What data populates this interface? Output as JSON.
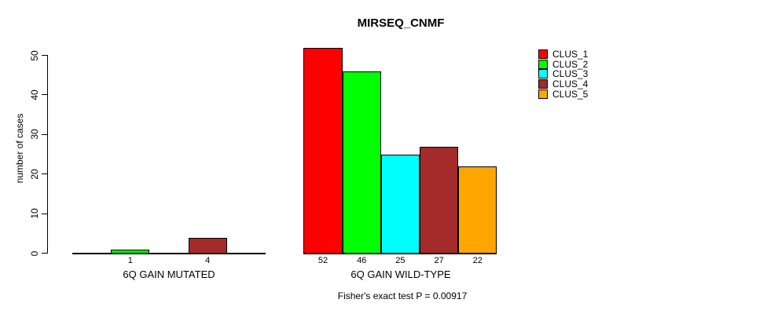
{
  "chart_data": {
    "type": "bar",
    "title": "MIRSEQ_CNMF",
    "ylabel": "number of cases",
    "ylim": [
      0,
      50
    ],
    "y_ticks": [
      0,
      10,
      20,
      30,
      40,
      50
    ],
    "footnote": "Fisher's exact test P = 0.00917",
    "grid": false,
    "legend": {
      "position": "top-right",
      "items": [
        {
          "label": "CLUS_1",
          "color": "#FF0000"
        },
        {
          "label": "CLUS_2",
          "color": "#00FF00"
        },
        {
          "label": "CLUS_3",
          "color": "#00FFFF"
        },
        {
          "label": "CLUS_4",
          "color": "#A52A2A"
        },
        {
          "label": "CLUS_5",
          "color": "#FFA500"
        }
      ]
    },
    "groups": [
      {
        "label": "6Q GAIN MUTATED",
        "slots": 5,
        "bars": [
          {
            "cluster": "CLUS_2",
            "value": 1,
            "color": "#00FF00",
            "slot": 1
          },
          {
            "cluster": "CLUS_4",
            "value": 4,
            "color": "#A52A2A",
            "slot": 3
          }
        ]
      },
      {
        "label": "6Q GAIN WILD-TYPE",
        "slots": 5,
        "bars": [
          {
            "cluster": "CLUS_1",
            "value": 52,
            "color": "#FF0000",
            "slot": 0
          },
          {
            "cluster": "CLUS_2",
            "value": 46,
            "color": "#00FF00",
            "slot": 1
          },
          {
            "cluster": "CLUS_3",
            "value": 25,
            "color": "#00FFFF",
            "slot": 2
          },
          {
            "cluster": "CLUS_4",
            "value": 27,
            "color": "#A52A2A",
            "slot": 3
          },
          {
            "cluster": "CLUS_5",
            "value": 22,
            "color": "#FFA500",
            "slot": 4
          }
        ]
      }
    ]
  }
}
